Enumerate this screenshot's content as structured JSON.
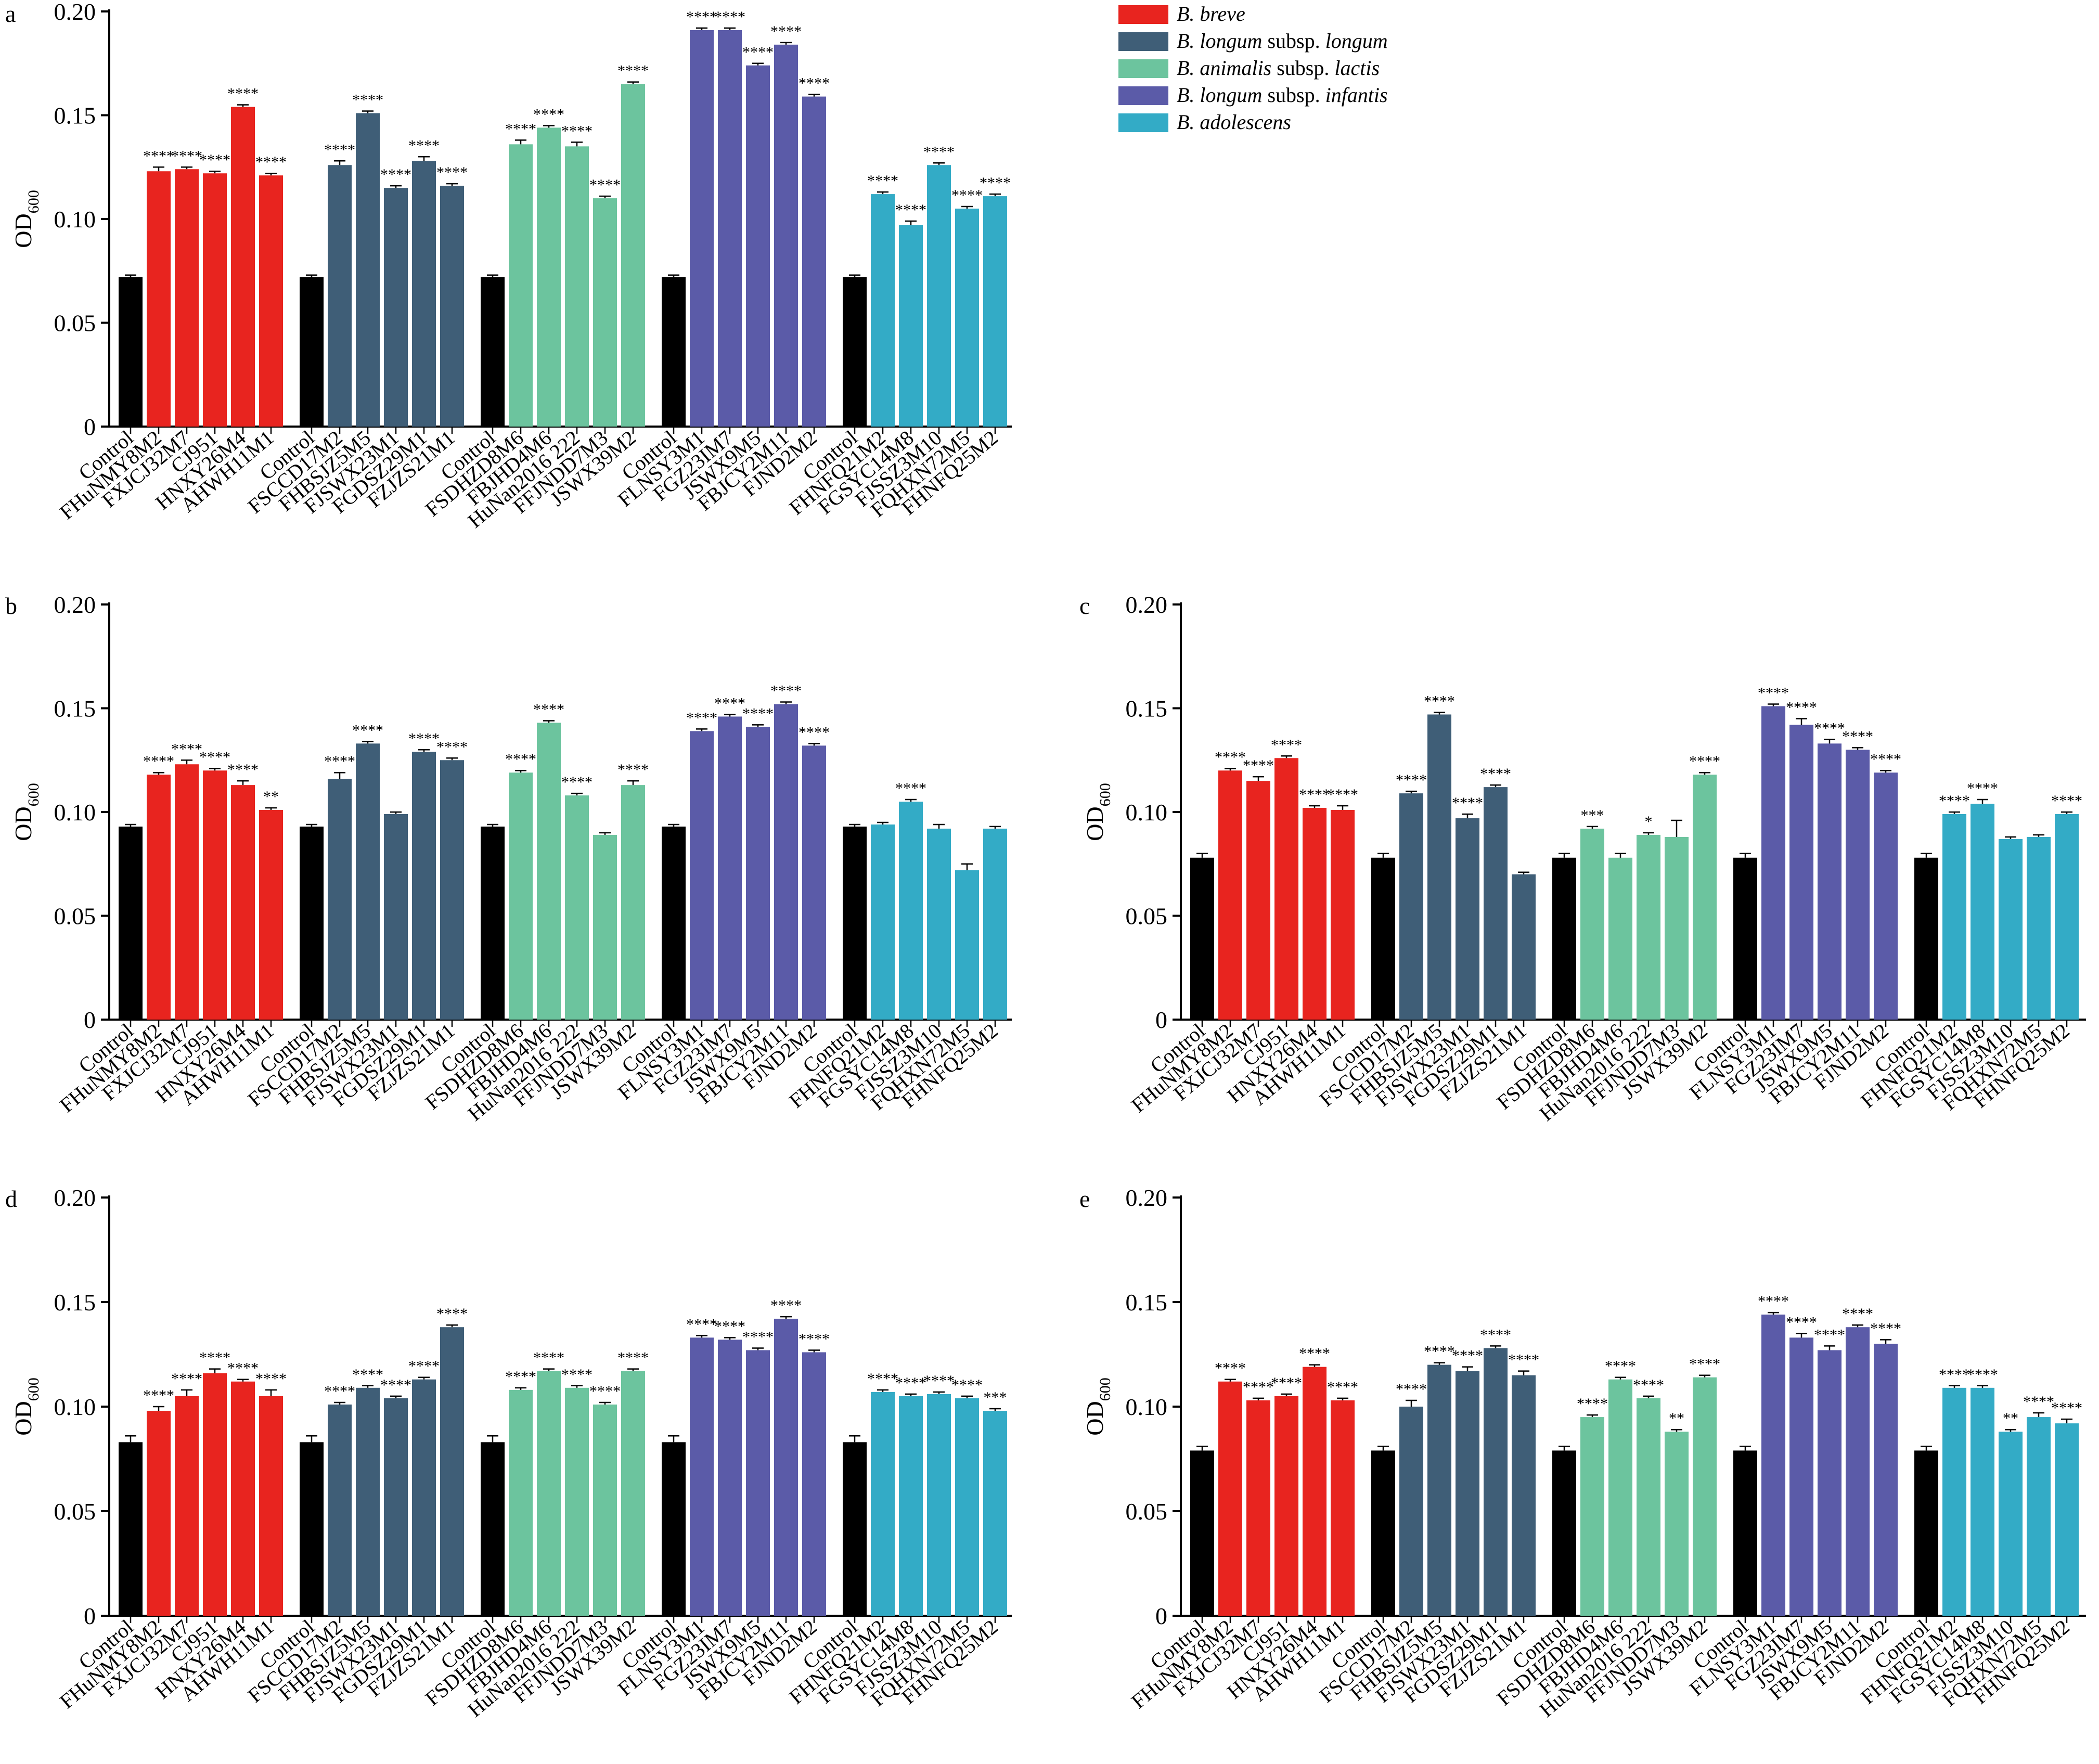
{
  "colors": {
    "control": "#000000",
    "B. breve": "#e8241f",
    "B. longum subsp. longum": "#3f5e77",
    "B. animalis subsp. lactis": "#6cc49e",
    "B. longum subsp. infantis": "#5b5ba8",
    "B. adolescens": "#33abc6"
  },
  "legend": [
    {
      "italic": "B. breve",
      "plain": "",
      "italic2": "",
      "group": "B. breve"
    },
    {
      "italic": "B. longum",
      "plain": " subsp. ",
      "italic2": "longum",
      "group": "B. longum subsp. longum"
    },
    {
      "italic": "B. animalis",
      "plain": " subsp. ",
      "italic2": "lactis",
      "group": "B. animalis subsp. lactis"
    },
    {
      "italic": "B. longum",
      "plain": " subsp. ",
      "italic2": "infantis",
      "group": "B. longum subsp. infantis"
    },
    {
      "italic": "B. adolescens",
      "plain": "",
      "italic2": "",
      "group": "B. adolescens"
    }
  ],
  "chart_data": [
    {
      "panel": "a",
      "type": "bar",
      "ylabel": "OD",
      "ylabel_sub": "600",
      "ylim": [
        0,
        0.2
      ],
      "yticks": [
        0,
        0.05,
        0.1,
        0.15,
        0.2
      ],
      "ytick_labels": [
        "0",
        "0.05",
        "0.10",
        "0.15",
        "0.20"
      ],
      "groups": [
        {
          "name": "B. breve",
          "categories": [
            "Control",
            "FHuNMY8M2",
            "FXJCJ32M7",
            "CJ951",
            "HNXY26M4",
            "AHWH11M1"
          ],
          "values": [
            0.072,
            0.123,
            0.124,
            0.122,
            0.154,
            0.121
          ],
          "errors": [
            0.001,
            0.002,
            0.001,
            0.001,
            0.001,
            0.001
          ],
          "sig": [
            "",
            "****",
            "****",
            "****",
            "****",
            "****"
          ]
        },
        {
          "name": "B. longum subsp. longum",
          "categories": [
            "Control",
            "FSCCD17M2",
            "FHBSJZ5M5",
            "FJSWX23M1",
            "FGDSZ29M1",
            "FZJZS21M1"
          ],
          "values": [
            0.072,
            0.126,
            0.151,
            0.115,
            0.128,
            0.116
          ],
          "errors": [
            0.001,
            0.002,
            0.001,
            0.001,
            0.002,
            0.001
          ],
          "sig": [
            "",
            "****",
            "****",
            "****",
            "****",
            "****"
          ]
        },
        {
          "name": "B. animalis subsp. lactis",
          "categories": [
            "Control",
            "FSDHZD8M6",
            "FBJHD4M6",
            "HuNan2016 222",
            "FFJNDD7M3",
            "JSWX39M2"
          ],
          "values": [
            0.072,
            0.136,
            0.144,
            0.135,
            0.11,
            0.165
          ],
          "errors": [
            0.001,
            0.002,
            0.001,
            0.002,
            0.001,
            0.001
          ],
          "sig": [
            "",
            "****",
            "****",
            "****",
            "****",
            "****"
          ]
        },
        {
          "name": "B. longum subsp. infantis",
          "categories": [
            "Control",
            "FLNSY3M1",
            "FGZ23IM7",
            "JSWX9M5",
            "FBJCY2M11",
            "FJND2M2"
          ],
          "values": [
            0.072,
            0.191,
            0.191,
            0.174,
            0.184,
            0.159
          ],
          "errors": [
            0.001,
            0.001,
            0.001,
            0.001,
            0.001,
            0.001
          ],
          "sig": [
            "",
            "****",
            "****",
            "****",
            "****",
            "****"
          ]
        },
        {
          "name": "B. adolescens",
          "categories": [
            "Control",
            "FHNFQ21M2",
            "FGSYC14M8",
            "FJSSZ3M10",
            "FQHXN72M5",
            "FHNFQ25M2"
          ],
          "values": [
            0.072,
            0.112,
            0.097,
            0.126,
            0.105,
            0.111
          ],
          "errors": [
            0.001,
            0.001,
            0.002,
            0.001,
            0.001,
            0.001
          ],
          "sig": [
            "",
            "****",
            "****",
            "****",
            "****",
            "****"
          ]
        }
      ]
    },
    {
      "panel": "b",
      "type": "bar",
      "ylabel": "OD",
      "ylabel_sub": "600",
      "ylim": [
        0,
        0.2
      ],
      "yticks": [
        0,
        0.05,
        0.1,
        0.15,
        0.2
      ],
      "ytick_labels": [
        "0",
        "0.05",
        "0.10",
        "0.15",
        "0.20"
      ],
      "groups": [
        {
          "name": "B. breve",
          "categories": [
            "Control",
            "FHuNMY8M2",
            "FXJCJ32M7",
            "CJ951",
            "HNXY26M4",
            "AHWH11M1"
          ],
          "values": [
            0.093,
            0.118,
            0.123,
            0.12,
            0.113,
            0.101
          ],
          "errors": [
            0.001,
            0.001,
            0.002,
            0.001,
            0.002,
            0.001
          ],
          "sig": [
            "",
            "****",
            "****",
            "****",
            "****",
            "**"
          ]
        },
        {
          "name": "B. longum subsp. longum",
          "categories": [
            "Control",
            "FSCCD17M2",
            "FHBSJZ5M5",
            "FJSWX23M1",
            "FGDSZ29M1",
            "FZJZS21M1"
          ],
          "values": [
            0.093,
            0.116,
            0.133,
            0.099,
            0.129,
            0.125
          ],
          "errors": [
            0.001,
            0.003,
            0.001,
            0.001,
            0.001,
            0.001
          ],
          "sig": [
            "",
            "****",
            "****",
            "",
            "****",
            "****"
          ]
        },
        {
          "name": "B. animalis subsp. lactis",
          "categories": [
            "Control",
            "FSDHZD8M6",
            "FBJHD4M6",
            "HuNan2016 222",
            "FFJNDD7M3",
            "JSWX39M2"
          ],
          "values": [
            0.093,
            0.119,
            0.143,
            0.108,
            0.089,
            0.113
          ],
          "errors": [
            0.001,
            0.001,
            0.001,
            0.001,
            0.001,
            0.002
          ],
          "sig": [
            "",
            "****",
            "****",
            "****",
            "",
            "****"
          ]
        },
        {
          "name": "B. longum subsp. infantis",
          "categories": [
            "Control",
            "FLNSY3M1",
            "FGZ23IM7",
            "JSWX9M5",
            "FBJCY2M11",
            "FJND2M2"
          ],
          "values": [
            0.093,
            0.139,
            0.146,
            0.141,
            0.152,
            0.132
          ],
          "errors": [
            0.001,
            0.001,
            0.001,
            0.001,
            0.001,
            0.001
          ],
          "sig": [
            "",
            "****",
            "****",
            "****",
            "****",
            "****"
          ]
        },
        {
          "name": "B. adolescens",
          "categories": [
            "Control",
            "FHNFQ21M2",
            "FGSYC14M8",
            "FJSSZ3M10",
            "FQHXN72M5",
            "FHNFQ25M2"
          ],
          "values": [
            0.093,
            0.094,
            0.105,
            0.092,
            0.072,
            0.092
          ],
          "errors": [
            0.001,
            0.001,
            0.001,
            0.002,
            0.003,
            0.001
          ],
          "sig": [
            "",
            "",
            "****",
            "",
            "",
            ""
          ]
        }
      ]
    },
    {
      "panel": "c",
      "type": "bar",
      "ylabel": "OD",
      "ylabel_sub": "600",
      "ylim": [
        0,
        0.2
      ],
      "yticks": [
        0,
        0.05,
        0.1,
        0.15,
        0.2
      ],
      "ytick_labels": [
        "0",
        "0.05",
        "0.10",
        "0.15",
        "0.20"
      ],
      "groups": [
        {
          "name": "B. breve",
          "categories": [
            "Control",
            "FHuNMY8M2",
            "FXJCJ32M7",
            "CJ951",
            "HNXY26M4",
            "AHWH11M1"
          ],
          "values": [
            0.078,
            0.12,
            0.115,
            0.126,
            0.102,
            0.101
          ],
          "errors": [
            0.002,
            0.001,
            0.002,
            0.001,
            0.001,
            0.002
          ],
          "sig": [
            "",
            "****",
            "****",
            "****",
            "****",
            "****"
          ]
        },
        {
          "name": "B. longum subsp. longum",
          "categories": [
            "Control",
            "FSCCD17M2",
            "FHBSJZ5M5",
            "FJSWX23M1",
            "FGDSZ29M1",
            "FZJZS21M1"
          ],
          "values": [
            0.078,
            0.109,
            0.147,
            0.097,
            0.112,
            0.07
          ],
          "errors": [
            0.002,
            0.001,
            0.001,
            0.002,
            0.001,
            0.001
          ],
          "sig": [
            "",
            "****",
            "****",
            "****",
            "****",
            ""
          ]
        },
        {
          "name": "B. animalis subsp. lactis",
          "categories": [
            "Control",
            "FSDHZD8M6",
            "FBJHD4M6",
            "HuNan2016 222",
            "FFJNDD7M3",
            "JSWX39M2"
          ],
          "values": [
            0.078,
            0.092,
            0.078,
            0.089,
            0.088,
            0.118
          ],
          "errors": [
            0.002,
            0.001,
            0.002,
            0.001,
            0.008,
            0.001
          ],
          "sig": [
            "",
            "***",
            "",
            "*",
            "",
            "****"
          ]
        },
        {
          "name": "B. longum subsp. infantis",
          "categories": [
            "Control",
            "FLNSY3M1",
            "FGZ23IM7",
            "JSWX9M5",
            "FBJCY2M11",
            "FJND2M2"
          ],
          "values": [
            0.078,
            0.151,
            0.142,
            0.133,
            0.13,
            0.119
          ],
          "errors": [
            0.002,
            0.001,
            0.003,
            0.002,
            0.001,
            0.001
          ],
          "sig": [
            "",
            "****",
            "****",
            "****",
            "****",
            "****"
          ]
        },
        {
          "name": "B. adolescens",
          "categories": [
            "Control",
            "FHNFQ21M2",
            "FGSYC14M8",
            "FJSSZ3M10",
            "FQHXN72M5",
            "FHNFQ25M2"
          ],
          "values": [
            0.078,
            0.099,
            0.104,
            0.087,
            0.088,
            0.099
          ],
          "errors": [
            0.002,
            0.001,
            0.002,
            0.001,
            0.001,
            0.001
          ],
          "sig": [
            "",
            "****",
            "****",
            "",
            "",
            "****"
          ]
        }
      ]
    },
    {
      "panel": "d",
      "type": "bar",
      "ylabel": "OD",
      "ylabel_sub": "600",
      "ylim": [
        0,
        0.2
      ],
      "yticks": [
        0,
        0.05,
        0.1,
        0.15,
        0.2
      ],
      "ytick_labels": [
        "0",
        "0.05",
        "0.10",
        "0.15",
        "0.20"
      ],
      "groups": [
        {
          "name": "B. breve",
          "categories": [
            "Control",
            "FHuNMY8M2",
            "FXJCJ32M7",
            "CJ951",
            "HNXY26M4",
            "AHWH11M1"
          ],
          "values": [
            0.083,
            0.098,
            0.105,
            0.116,
            0.112,
            0.105
          ],
          "errors": [
            0.003,
            0.002,
            0.003,
            0.002,
            0.001,
            0.003
          ],
          "sig": [
            "",
            "****",
            "****",
            "****",
            "****",
            "****"
          ]
        },
        {
          "name": "B. longum subsp. longum",
          "categories": [
            "Control",
            "FSCCD17M2",
            "FHBSJZ5M5",
            "FJSWX23M1",
            "FGDSZ29M1",
            "FZJZS21M1"
          ],
          "values": [
            0.083,
            0.101,
            0.109,
            0.104,
            0.113,
            0.138
          ],
          "errors": [
            0.003,
            0.001,
            0.001,
            0.001,
            0.001,
            0.001
          ],
          "sig": [
            "",
            "****",
            "****",
            "****",
            "****",
            "****"
          ]
        },
        {
          "name": "B. animalis subsp. lactis",
          "categories": [
            "Control",
            "FSDHZD8M6",
            "FBJHD4M6",
            "HuNan2016 222",
            "FFJNDD7M3",
            "JSWX39M2"
          ],
          "values": [
            0.083,
            0.108,
            0.117,
            0.109,
            0.101,
            0.117
          ],
          "errors": [
            0.003,
            0.001,
            0.001,
            0.001,
            0.001,
            0.001
          ],
          "sig": [
            "",
            "****",
            "****",
            "****",
            "****",
            "****"
          ]
        },
        {
          "name": "B. longum subsp. infantis",
          "categories": [
            "Control",
            "FLNSY3M1",
            "FGZ23IM7",
            "JSWX9M5",
            "FBJCY2M11",
            "FJND2M2"
          ],
          "values": [
            0.083,
            0.133,
            0.132,
            0.127,
            0.142,
            0.126
          ],
          "errors": [
            0.003,
            0.001,
            0.001,
            0.001,
            0.001,
            0.001
          ],
          "sig": [
            "",
            "****",
            "****",
            "****",
            "****",
            "****"
          ]
        },
        {
          "name": "B. adolescens",
          "categories": [
            "Control",
            "FHNFQ21M2",
            "FGSYC14M8",
            "FJSSZ3M10",
            "FQHXN72M5",
            "FHNFQ25M2"
          ],
          "values": [
            0.083,
            0.107,
            0.105,
            0.106,
            0.104,
            0.098
          ],
          "errors": [
            0.003,
            0.001,
            0.001,
            0.001,
            0.001,
            0.001
          ],
          "sig": [
            "",
            "****",
            "****",
            "****",
            "****",
            "***"
          ]
        }
      ]
    },
    {
      "panel": "e",
      "type": "bar",
      "ylabel": "OD",
      "ylabel_sub": "600",
      "ylim": [
        0,
        0.2
      ],
      "yticks": [
        0,
        0.05,
        0.1,
        0.15,
        0.2
      ],
      "ytick_labels": [
        "0",
        "0.05",
        "0.10",
        "0.15",
        "0.20"
      ],
      "groups": [
        {
          "name": "B. breve",
          "categories": [
            "Control",
            "FHuNMY8M2",
            "FXJCJ32M7",
            "CJ951",
            "HNXY26M4",
            "AHWH11M1"
          ],
          "values": [
            0.079,
            0.112,
            0.103,
            0.105,
            0.119,
            0.103
          ],
          "errors": [
            0.002,
            0.001,
            0.001,
            0.001,
            0.001,
            0.001
          ],
          "sig": [
            "",
            "****",
            "****",
            "****",
            "****",
            "****"
          ]
        },
        {
          "name": "B. longum subsp. longum",
          "categories": [
            "Control",
            "FSCCD17M2",
            "FHBSJZ5M5",
            "FJSWX23M1",
            "FGDSZ29M1",
            "FZJZS21M1"
          ],
          "values": [
            0.079,
            0.1,
            0.12,
            0.117,
            0.128,
            0.115
          ],
          "errors": [
            0.002,
            0.003,
            0.001,
            0.002,
            0.001,
            0.002
          ],
          "sig": [
            "",
            "****",
            "****",
            "****",
            "****",
            "****"
          ]
        },
        {
          "name": "B. animalis subsp. lactis",
          "categories": [
            "Control",
            "FSDHZD8M6",
            "FBJHD4M6",
            "HuNan2016 222",
            "FFJNDD7M3",
            "JSWX39M2"
          ],
          "values": [
            0.079,
            0.095,
            0.113,
            0.104,
            0.088,
            0.114
          ],
          "errors": [
            0.002,
            0.001,
            0.001,
            0.001,
            0.001,
            0.001
          ],
          "sig": [
            "",
            "****",
            "****",
            "****",
            "**",
            "****"
          ]
        },
        {
          "name": "B. longum subsp. infantis",
          "categories": [
            "Control",
            "FLNSY3M1",
            "FGZ23IM7",
            "JSWX9M5",
            "FBJCY2M11",
            "FJND2M2"
          ],
          "values": [
            0.079,
            0.144,
            0.133,
            0.127,
            0.138,
            0.13
          ],
          "errors": [
            0.002,
            0.001,
            0.002,
            0.002,
            0.001,
            0.002
          ],
          "sig": [
            "",
            "****",
            "****",
            "****",
            "****",
            "****"
          ]
        },
        {
          "name": "B. adolescens",
          "categories": [
            "Control",
            "FHNFQ21M2",
            "FGSYC14M8",
            "FJSSZ3M10",
            "FQHXN72M5",
            "FHNFQ25M2"
          ],
          "values": [
            0.079,
            0.109,
            0.109,
            0.088,
            0.095,
            0.092
          ],
          "errors": [
            0.002,
            0.001,
            0.001,
            0.001,
            0.002,
            0.002
          ],
          "sig": [
            "",
            "****",
            "****",
            "**",
            "****",
            "****"
          ]
        }
      ]
    }
  ]
}
